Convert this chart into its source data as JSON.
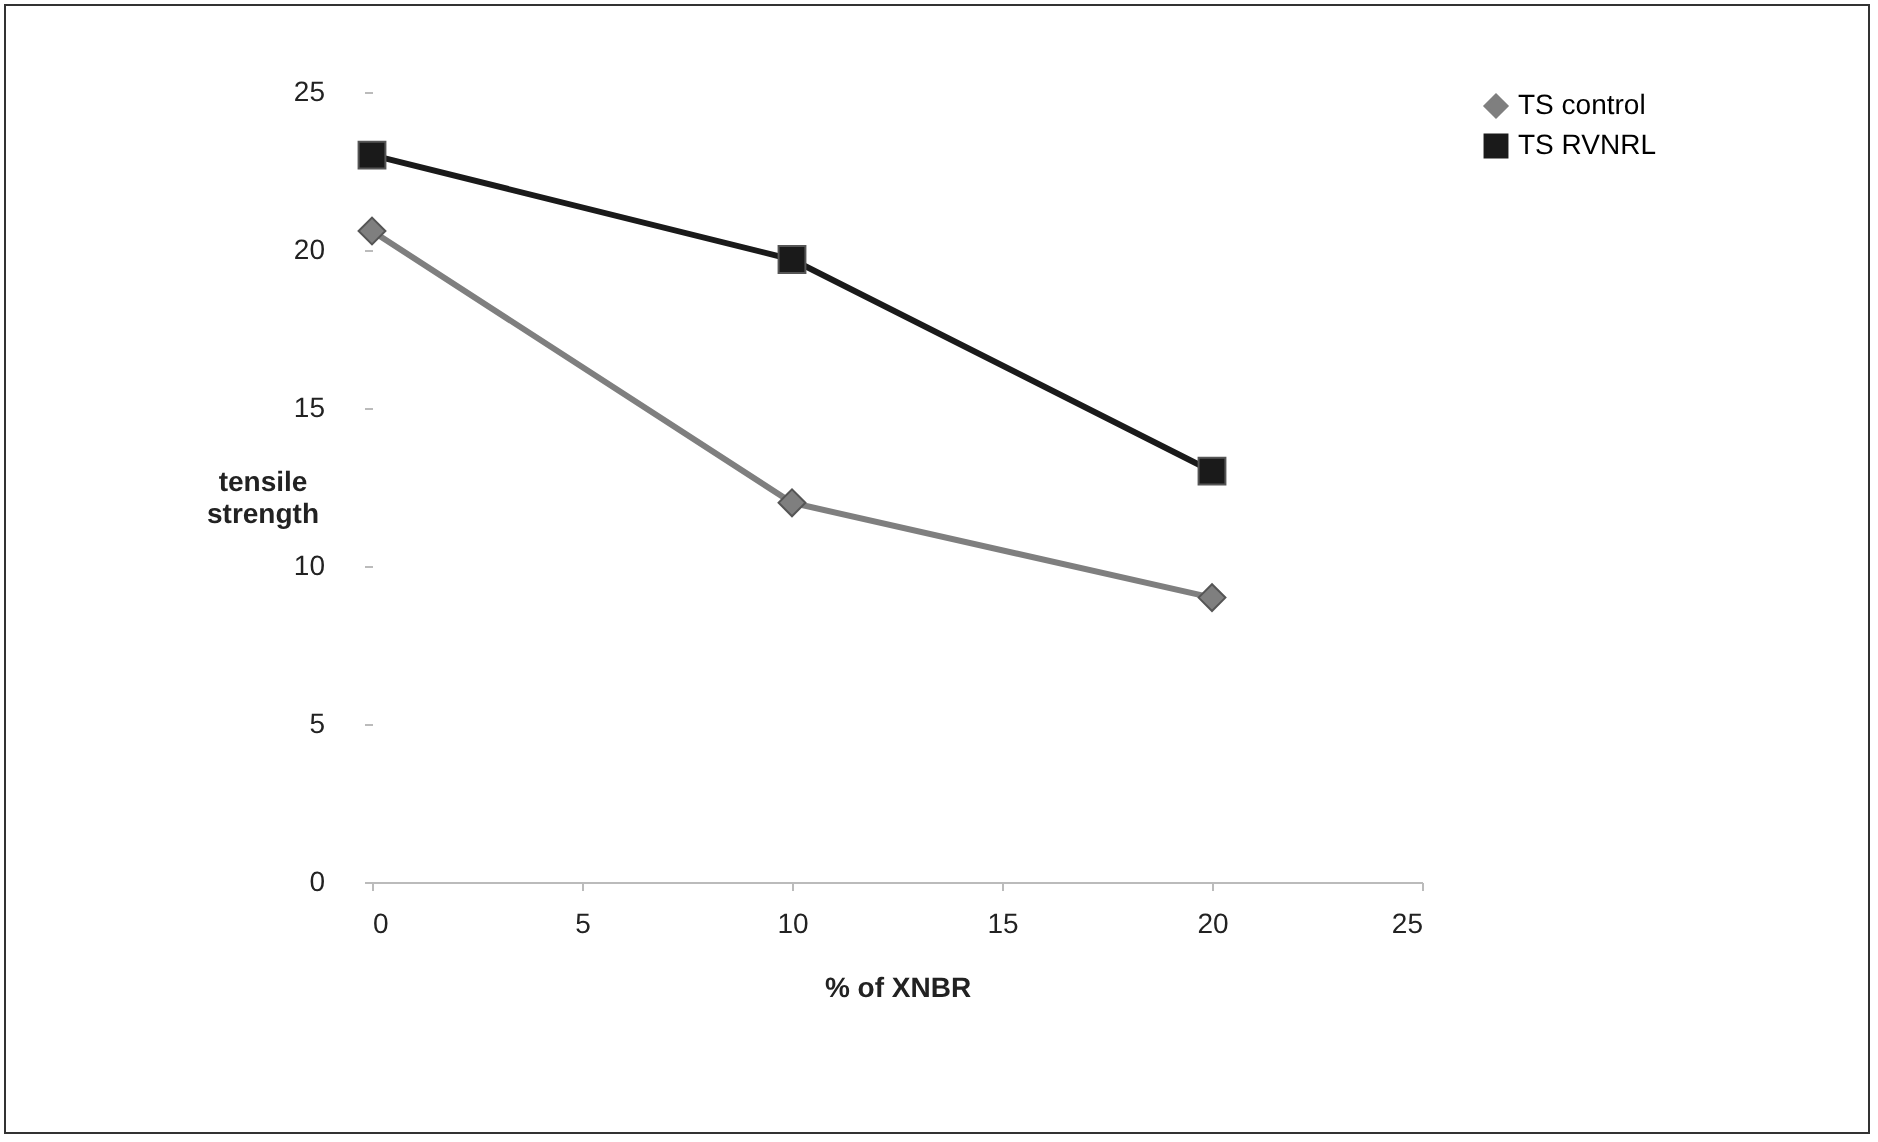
{
  "chart_data": {
    "type": "line",
    "xlabel": "% of XNBR",
    "ylabel": "tensile strength",
    "x": [
      0,
      10,
      20
    ],
    "series": [
      {
        "name": "TS control",
        "color": "#7f7f7f",
        "marker": "diamond",
        "values": [
          20.6,
          12,
          9
        ]
      },
      {
        "name": "TS RVNRL",
        "color": "#1a1a1a",
        "marker": "square",
        "values": [
          23,
          19.7,
          13
        ]
      }
    ],
    "xlim": [
      0,
      25
    ],
    "xticks": [
      0,
      5,
      10,
      15,
      20,
      25
    ],
    "ylim": [
      0,
      25
    ],
    "yticks": [
      0,
      5,
      10,
      15,
      20,
      25
    ],
    "grid": false,
    "legend": "right"
  }
}
